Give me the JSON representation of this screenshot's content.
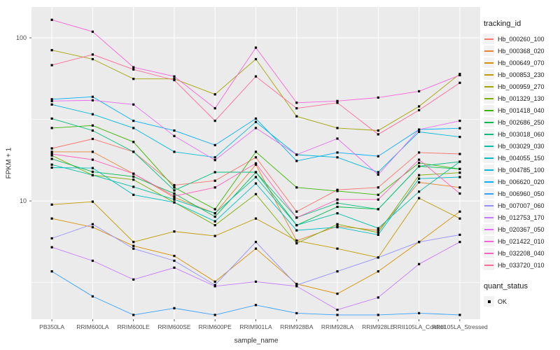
{
  "figure": {
    "panel_background": "#EBEBEB",
    "grid_color": "#FFFFFF",
    "tick_color": "#333333",
    "tick_label_color": "#4D4D4D",
    "point_color": "#000000"
  },
  "chart_data": {
    "type": "line",
    "title": "",
    "xlabel": "sample_name",
    "ylabel": "FPKM + 1",
    "y_scale": "log10",
    "ylim": [
      1.9,
      155
    ],
    "y_ticks": [
      100,
      10
    ],
    "y_minor_ticks": [
      31.62,
      3.162
    ],
    "grid": true,
    "marker": "black-square",
    "legend": {
      "title": "tracking_id",
      "position": "right"
    },
    "legend2": {
      "title": "quant_status",
      "items": [
        {
          "label": "OK",
          "marker": "black-square"
        }
      ]
    },
    "categories": [
      "PB350LA",
      "RRIM600LA",
      "RRIM600LE",
      "RRIM600SE",
      "RRIM600PE",
      "RRIM901LA",
      "RRIM928BA",
      "RRIM928LA",
      "RRIM928LE",
      "RRII105LA_Control",
      "RRII105LA_Stressed"
    ],
    "series": [
      {
        "name": "Hb_000260_100",
        "color": "#F8766D",
        "values": [
          21,
          24,
          20,
          12.5,
          13.3,
          18.5,
          8.6,
          11.7,
          12.1,
          19.8,
          19.4
        ]
      },
      {
        "name": "Hb_000368_020",
        "color": "#EA8331",
        "values": [
          20,
          20,
          14.7,
          10.5,
          8.4,
          16.7,
          5.7,
          7.0,
          6.6,
          13.0,
          12.1
        ]
      },
      {
        "name": "Hb_000649_070",
        "color": "#D89000",
        "values": [
          7.8,
          6.9,
          5.3,
          4.6,
          3.2,
          5.1,
          3.1,
          2.7,
          3.7,
          5.6,
          8.6
        ]
      },
      {
        "name": "Hb_000853_230",
        "color": "#C09B00",
        "values": [
          9.5,
          9.9,
          5.6,
          6.5,
          6.1,
          7.8,
          5.7,
          5.1,
          4.5,
          10.4,
          7.8
        ]
      },
      {
        "name": "Hb_000959_270",
        "color": "#A3A500",
        "values": [
          84,
          74,
          56,
          56,
          45,
          74,
          33,
          28,
          27,
          38,
          60
        ]
      },
      {
        "name": "Hb_001329_130",
        "color": "#7CAE00",
        "values": [
          19,
          14.4,
          13.5,
          9.8,
          7.1,
          11.0,
          5.5,
          7.2,
          6.4,
          14.4,
          14.9
        ]
      },
      {
        "name": "Hb_001418_040",
        "color": "#39B600",
        "values": [
          28,
          29,
          23,
          12.1,
          8.9,
          20,
          12.1,
          11.5,
          10.9,
          17.1,
          15.7
        ]
      },
      {
        "name": "Hb_002686_250",
        "color": "#00BB4E",
        "values": [
          18.1,
          15.1,
          14.1,
          11.1,
          8.0,
          15.0,
          7.1,
          9.2,
          8.9,
          16.3,
          15.7
        ]
      },
      {
        "name": "Hb_003018_060",
        "color": "#00BF7D",
        "values": [
          32,
          27,
          20,
          11.6,
          15.0,
          15.0,
          7.9,
          9.7,
          8.9,
          16.3,
          17.4
        ]
      },
      {
        "name": "Hb_003029_030",
        "color": "#00C1A3",
        "values": [
          16.7,
          14.4,
          12.2,
          10.2,
          8.4,
          14.0,
          7.1,
          8.4,
          6.8,
          11.4,
          17.4
        ]
      },
      {
        "name": "Hb_004055_150",
        "color": "#00BFC4",
        "values": [
          16.0,
          15.9,
          10.9,
          9.8,
          7.5,
          12.8,
          6.6,
          6.9,
          6.2,
          13.7,
          14.0
        ]
      },
      {
        "name": "Hb_004785_100",
        "color": "#00BADE",
        "values": [
          39,
          34,
          28,
          20,
          18.5,
          30.5,
          19.2,
          18.5,
          15.0,
          26.5,
          24.7
        ]
      },
      {
        "name": "Hb_006620_020",
        "color": "#00B0F6",
        "values": [
          42,
          43.5,
          31,
          27,
          22,
          32,
          17.6,
          19.8,
          18.8,
          27.4,
          27.9
        ]
      },
      {
        "name": "Hb_006960_050",
        "color": "#35A2FF",
        "values": [
          3.7,
          2.6,
          2.0,
          2.2,
          2.0,
          2.3,
          2.05,
          2.0,
          2.0,
          2.05,
          2.0
        ]
      },
      {
        "name": "Hb_007007_060",
        "color": "#9590FF",
        "values": [
          5.9,
          7.2,
          5.1,
          4.3,
          3.05,
          5.6,
          3.05,
          3.7,
          4.5,
          5.6,
          6.2
        ]
      },
      {
        "name": "Hb_012753_170",
        "color": "#C77CFF",
        "values": [
          5.2,
          4.3,
          3.3,
          3.9,
          3.0,
          3.2,
          3.0,
          2.15,
          2.56,
          4.1,
          5.6
        ]
      },
      {
        "name": "Hb_020367_050",
        "color": "#E76BF3",
        "values": [
          41,
          41.4,
          39,
          25,
          17.8,
          28,
          19.2,
          24.1,
          14.5,
          27.4,
          31
        ]
      },
      {
        "name": "Hb_021422_010",
        "color": "#FA62DB",
        "values": [
          129,
          109,
          66,
          58,
          37,
          87,
          40,
          41,
          43,
          47,
          59
        ]
      },
      {
        "name": "Hb_032208_040",
        "color": "#FF62BC",
        "values": [
          19.4,
          17.9,
          14.7,
          10.7,
          12.1,
          17.0,
          7.9,
          10.2,
          10.2,
          17.9,
          11.1
        ]
      },
      {
        "name": "Hb_033720_010",
        "color": "#FF6A98",
        "values": [
          68,
          79,
          64,
          55,
          31,
          58,
          37,
          40,
          25.6,
          36,
          53
        ]
      }
    ]
  }
}
